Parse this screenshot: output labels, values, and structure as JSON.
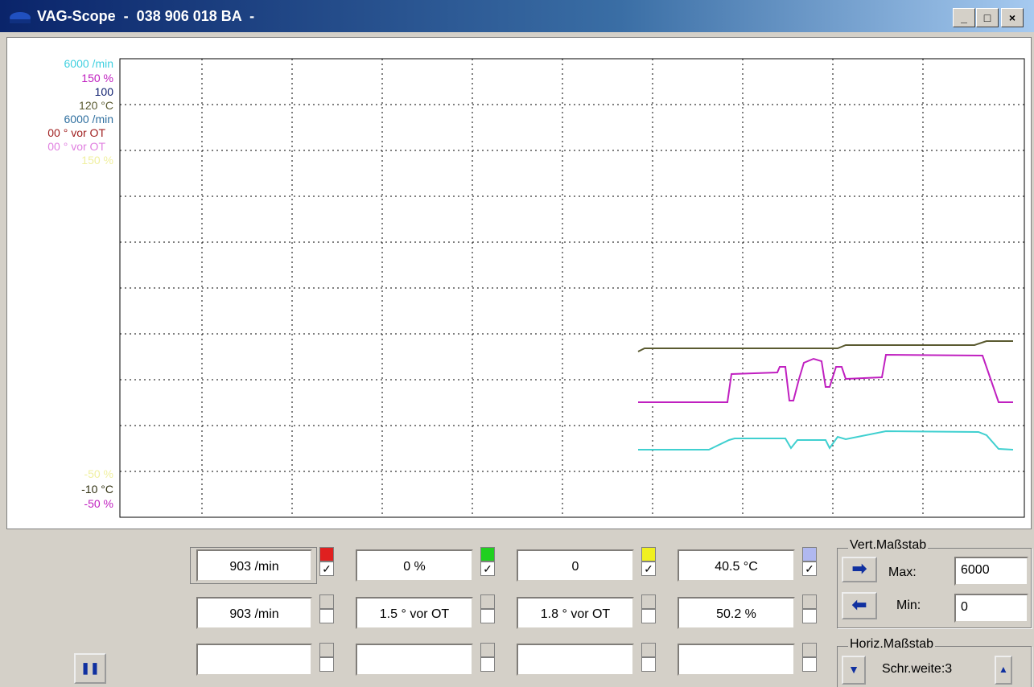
{
  "window": {
    "title": "VAG-Scope  -  038 906 018 BA  -"
  },
  "scale_labels": {
    "top": [
      "6000 /min",
      "150 %",
      "100",
      "120 °C",
      "6000 /min",
      "00 ° vor OT",
      "00 ° vor OT",
      "150 %"
    ],
    "bottom": [
      "-50 %",
      "-10 °C",
      "-50 %"
    ]
  },
  "fields": {
    "rows": [
      [
        "903 /min",
        "0 %",
        "0",
        "40.5 °C"
      ],
      [
        "903 /min",
        "1.5 ° vor OT",
        "1.8 ° vor OT",
        "50.2 %"
      ]
    ]
  },
  "vertical_scale": {
    "label": "Vert.Maßstab",
    "max_label": "Max:",
    "max_value": "6000",
    "min_label": "Min:",
    "min_value": "0"
  },
  "horizontal_scale": {
    "label": "Horiz.Maßstab",
    "step": "Schr.weite:3"
  }
}
